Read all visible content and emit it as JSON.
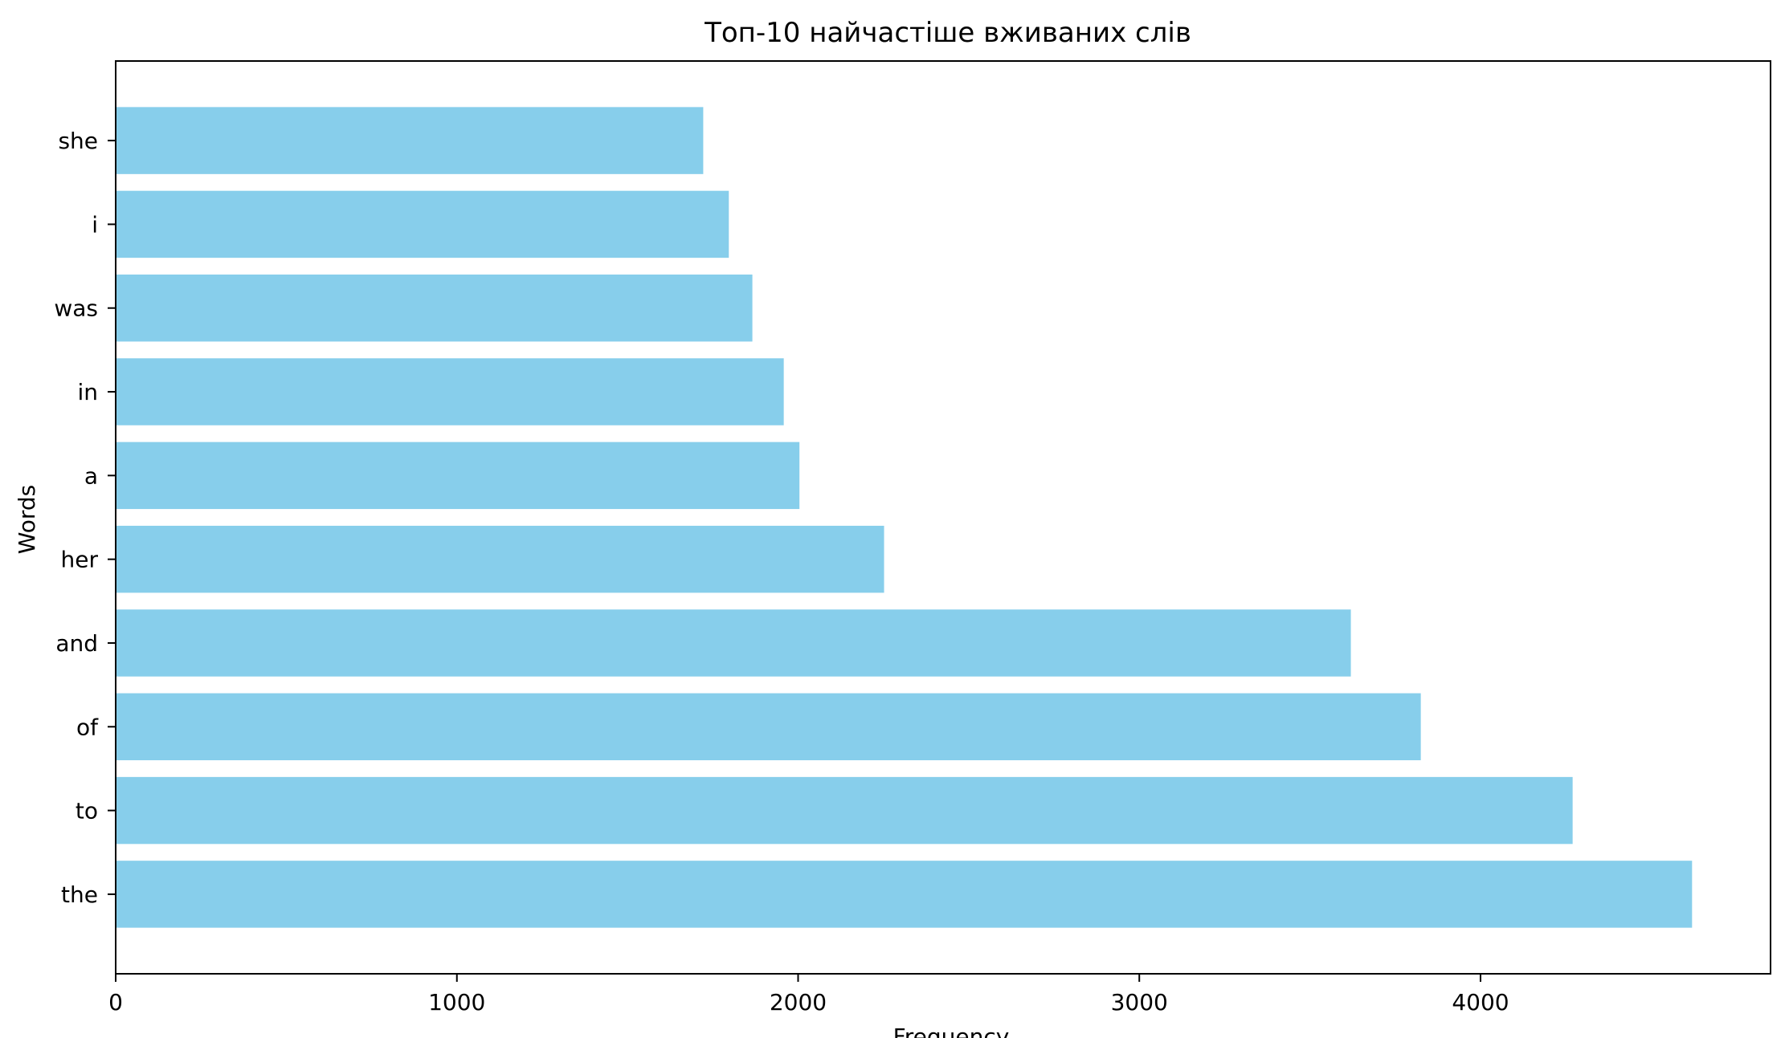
{
  "chart_data": {
    "type": "bar",
    "orientation": "horizontal",
    "title": "Топ-10 найчастіше вживаних слів",
    "xlabel": "Frequency",
    "ylabel": "Words",
    "categories": [
      "the",
      "to",
      "of",
      "and",
      "her",
      "a",
      "in",
      "was",
      "i",
      "she"
    ],
    "values": [
      4620,
      4270,
      3825,
      3620,
      2252,
      2004,
      1958,
      1866,
      1797,
      1722
    ],
    "xlim": [
      0,
      4850
    ],
    "xticks": [
      0,
      1000,
      2000,
      3000,
      4000
    ],
    "bar_color": "#87ceeb",
    "grid": false,
    "legend": false
  }
}
